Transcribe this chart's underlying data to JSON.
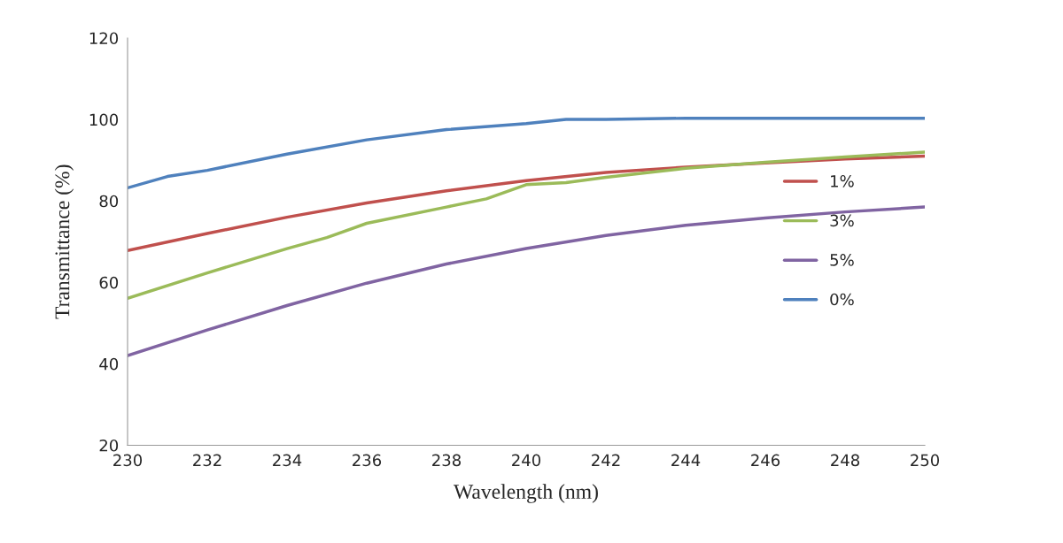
{
  "chart_data": {
    "type": "line",
    "xlabel": "Wavelength (nm)",
    "ylabel": "Transmittance (%)",
    "xlim": [
      230,
      250
    ],
    "xticks": [
      230,
      232,
      234,
      236,
      238,
      240,
      242,
      244,
      246,
      248,
      250
    ],
    "ylim": [
      20,
      120
    ],
    "yticks": [
      20,
      40,
      60,
      80,
      100,
      120
    ],
    "grid": false,
    "legend": "right",
    "marker": "none",
    "line_style": "solid",
    "series": [
      {
        "name": "1%",
        "color": "#c0504d",
        "x": [
          230,
          232,
          234,
          236,
          238,
          240,
          242,
          244,
          246,
          248,
          250
        ],
        "values": [
          67.8,
          72,
          76,
          79.5,
          82.5,
          85,
          87,
          88.3,
          89.3,
          90.3,
          91
        ]
      },
      {
        "name": "3%",
        "color": "#9bbb59",
        "x": [
          230,
          232,
          234,
          235,
          236,
          238,
          239,
          240,
          241,
          242,
          244,
          246,
          248,
          250
        ],
        "values": [
          56.1,
          62.3,
          68.3,
          71,
          74.5,
          78.5,
          80.5,
          84,
          84.5,
          85.8,
          88,
          89.5,
          90.8,
          92
        ]
      },
      {
        "name": "5%",
        "color": "#8064a2",
        "x": [
          230,
          232,
          234,
          236,
          238,
          240,
          242,
          244,
          246,
          248,
          250
        ],
        "values": [
          42,
          48.3,
          54.3,
          59.8,
          64.5,
          68.3,
          71.5,
          74,
          75.8,
          77.3,
          78.5
        ]
      },
      {
        "name": "0%",
        "color": "#4f81bd",
        "x": [
          230,
          231,
          232,
          234,
          236,
          238,
          240,
          241,
          242,
          244,
          246,
          248,
          250
        ],
        "values": [
          83.2,
          86,
          87.5,
          91.5,
          95,
          97.5,
          99,
          100,
          100,
          100.3,
          100.3,
          100.3,
          100.3
        ]
      }
    ]
  }
}
